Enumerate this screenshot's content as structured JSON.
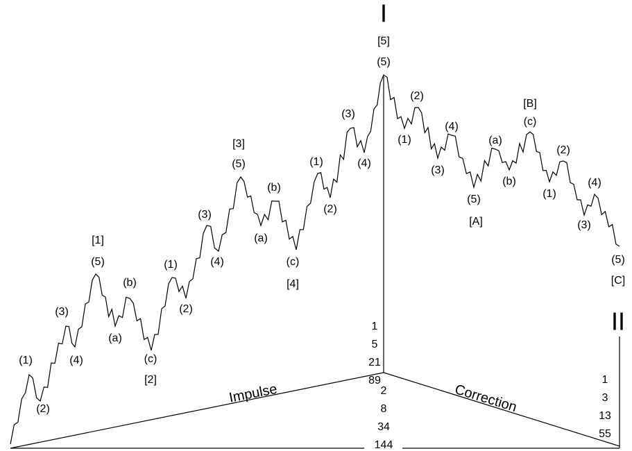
{
  "waves": {
    "labels": [
      "(1)",
      "(2)",
      "(3)",
      "(4)",
      "(5)",
      "[1]",
      "(b)",
      "(a)",
      "(c)",
      "[2]",
      "(1)",
      "(2)",
      "(3)",
      "(4)",
      "(5)",
      "[3]",
      "(b)",
      "(a)",
      "(c)",
      "[4]",
      "(1)",
      "(2)",
      "(3)",
      "(4)",
      "(5)",
      "[5]",
      "(2)",
      "(1)",
      "(4)",
      "(3)",
      "(5)",
      "[A]",
      "(a)",
      "(b)",
      "(c)",
      "[B]",
      "(2)",
      "(1)",
      "(4)",
      "(3)",
      "(5)",
      "[C]"
    ],
    "top_mark": "I",
    "end_mark": "II",
    "impulse_caption": "Impulse",
    "correction_caption": "Correction",
    "impulse_counts": [
      1,
      5,
      21,
      89
    ],
    "total_counts": [
      2,
      8,
      34,
      144
    ],
    "correction_counts": [
      1,
      3,
      13,
      55
    ]
  }
}
